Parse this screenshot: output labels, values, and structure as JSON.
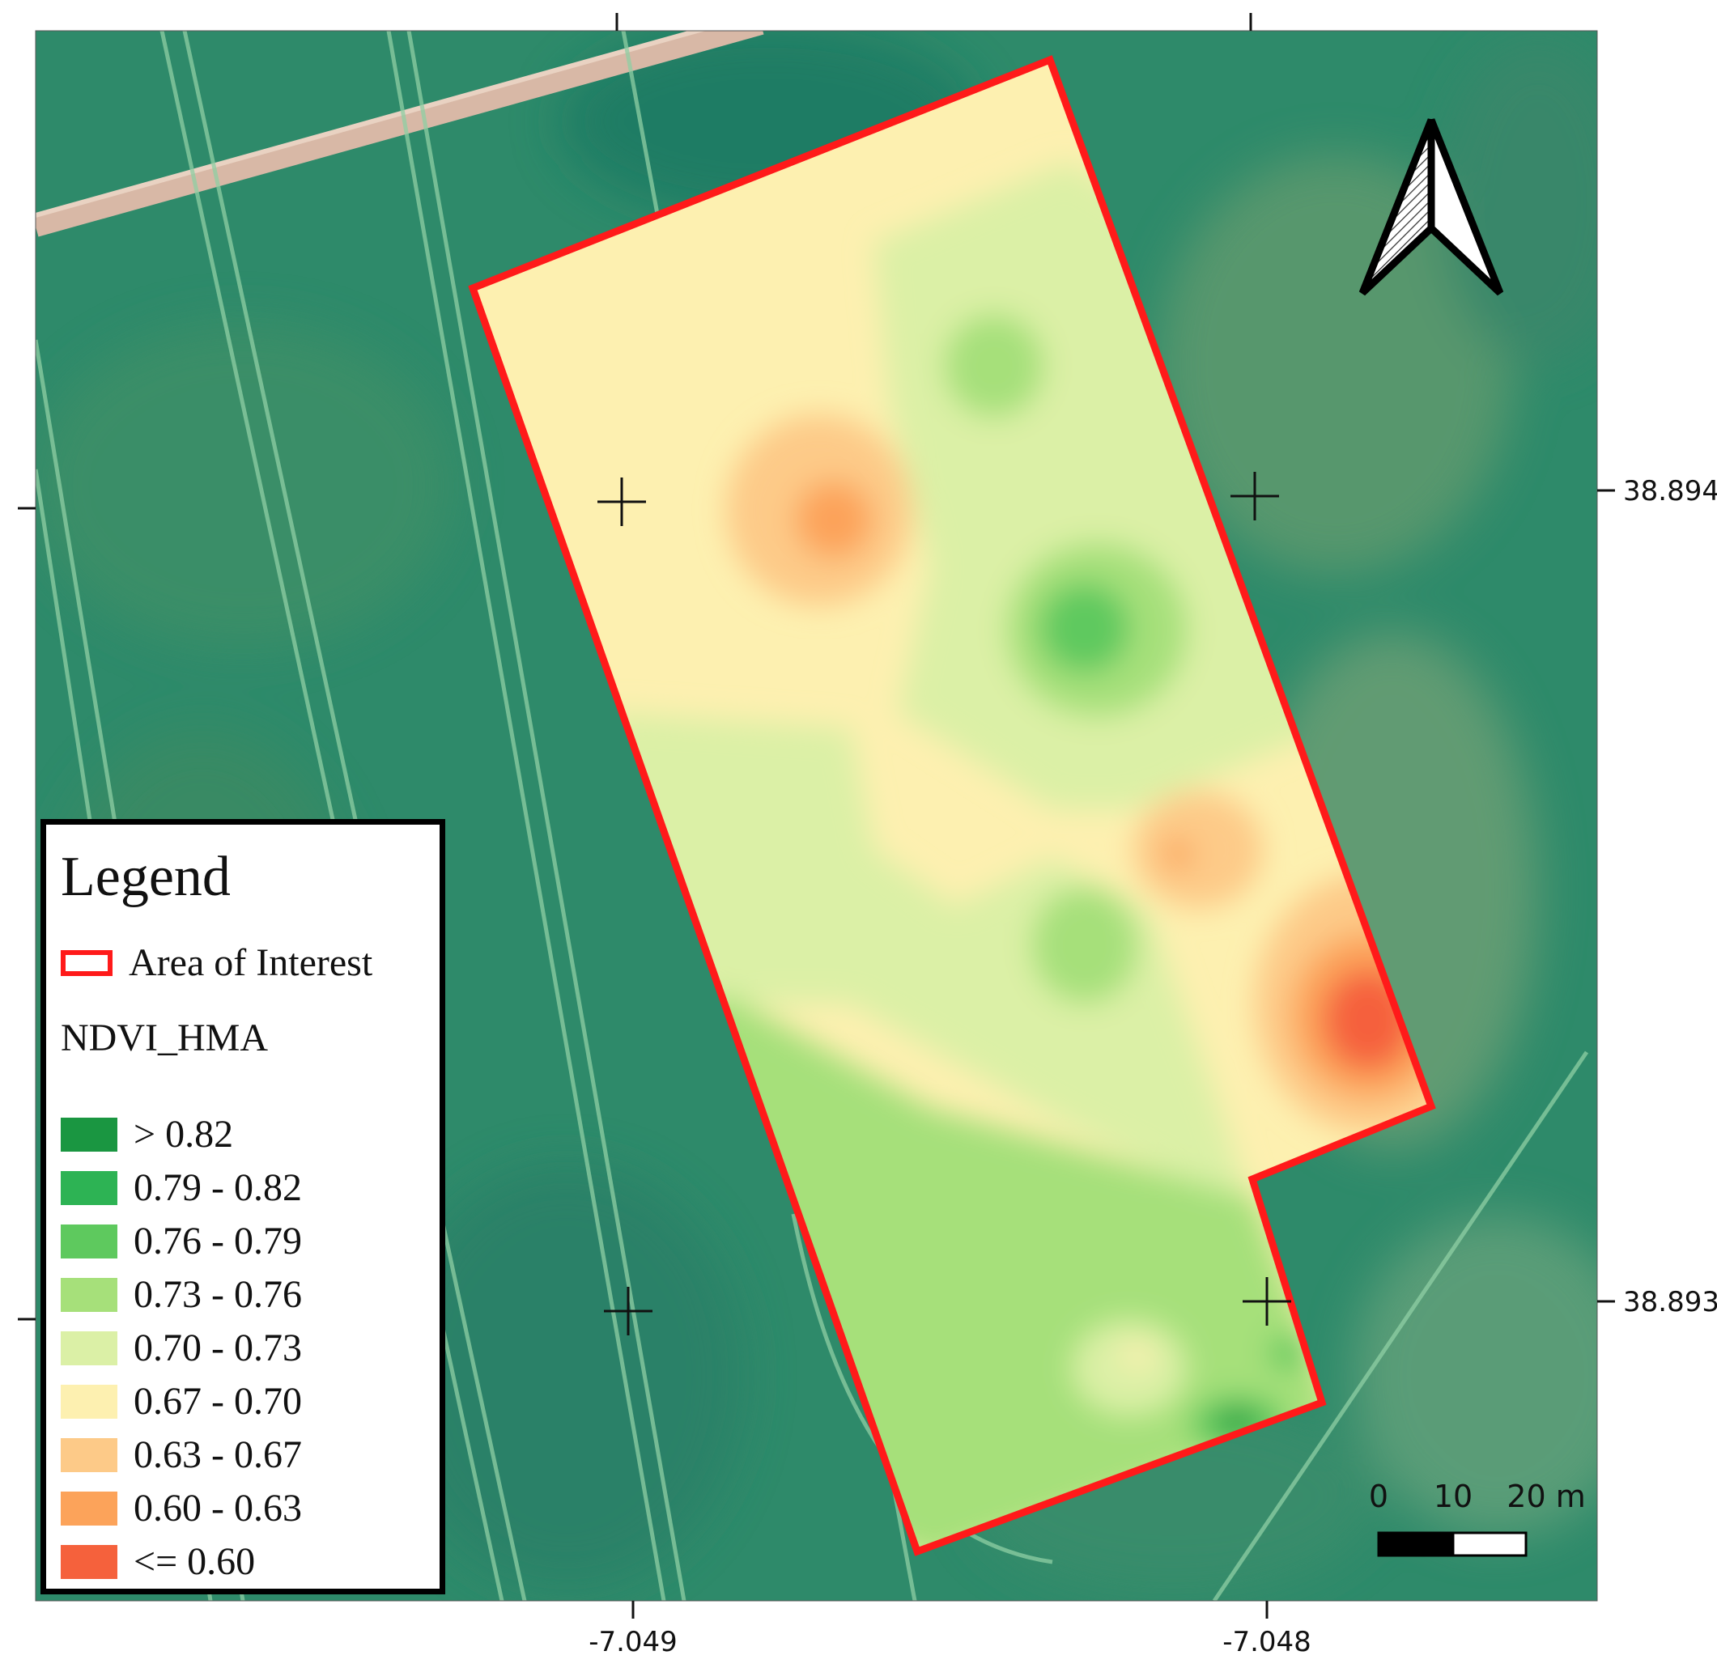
{
  "map": {
    "axes": {
      "longitude_ticks": [
        "-7.049",
        "-7.048"
      ],
      "latitude_ticks": [
        "38.894",
        "38.893"
      ]
    },
    "scale_bar": {
      "labels": [
        "0",
        "10",
        "20 m"
      ]
    },
    "north_arrow": {
      "icon": "north-arrow-icon"
    },
    "colors": {
      "area_outline": "#ff1a1a",
      "imagery_base": "#2e8a6a"
    }
  },
  "legend": {
    "title": "Legend",
    "area_label": "Area of Interest",
    "layer_name": "NDVI_HMA",
    "classes": [
      {
        "label": "> 0.82",
        "color": "#1a9641"
      },
      {
        "label": "0.79 - 0.82",
        "color": "#2db354"
      },
      {
        "label": "0.76 - 0.79",
        "color": "#5ec95e"
      },
      {
        "label": "0.73 - 0.76",
        "color": "#a6e07a"
      },
      {
        "label": "0.70 - 0.73",
        "color": "#dbf0a6"
      },
      {
        "label": "0.67 - 0.70",
        "color": "#fdf0b0"
      },
      {
        "label": "0.63 - 0.67",
        "color": "#fdca88"
      },
      {
        "label": "0.60 - 0.63",
        "color": "#fca35a"
      },
      {
        "label": "<= 0.60",
        "color": "#f5613c"
      }
    ]
  }
}
